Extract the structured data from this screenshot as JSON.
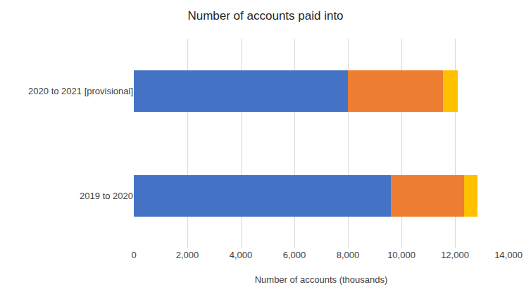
{
  "chart_data": {
    "type": "bar",
    "title": "Number of accounts paid into",
    "x_label": "Number of accounts (thousands)",
    "orientation": "horizontal",
    "stacked": true,
    "grid": true,
    "categories": [
      "2019 to 2020",
      "2020 to 2021 [provisional]"
    ],
    "series": [
      {
        "color": "#4472c4",
        "values": [
          9600,
          8000
        ]
      },
      {
        "color": "#ed7d31",
        "values": [
          2750,
          3550
        ]
      },
      {
        "color": "#ffc000",
        "values": [
          500,
          550
        ]
      }
    ],
    "xlim": [
      0,
      14000
    ],
    "xticks": [
      0,
      {
        "value": 2000,
        "label": "2,000"
      },
      {
        "value": 4000,
        "label": "4,000"
      },
      {
        "value": 6000,
        "label": "6,000"
      },
      {
        "value": 8000,
        "label": "8,000"
      },
      {
        "value": 10000,
        "label": "10,000"
      },
      {
        "value": 12000,
        "label": "12,000"
      },
      {
        "value": 14000,
        "label": "14,000"
      }
    ]
  }
}
